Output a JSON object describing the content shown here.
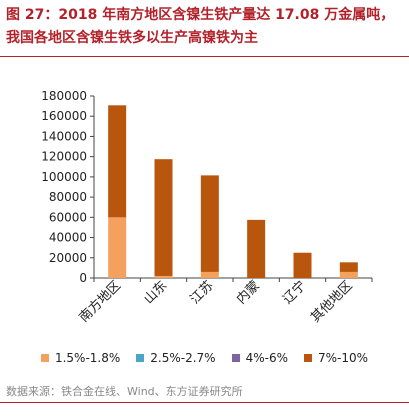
{
  "header": {
    "title_line1": "图 27：2018 年南方地区含镍生铁产量达 17.08 万金属吨，",
    "title_line2": "我国各地区含镍生铁多以生产高镍铁为主"
  },
  "chart_data": {
    "type": "bar",
    "stacked": true,
    "categories": [
      "南方地区",
      "山东",
      "江苏",
      "内蒙",
      "辽宁",
      "其他地区"
    ],
    "series": [
      {
        "name": "1.5%-1.8%",
        "color": "#f4a15d",
        "values": [
          60000,
          2000,
          6000,
          0,
          0,
          6000
        ]
      },
      {
        "name": "2.5%-2.7%",
        "color": "#4aa5c9",
        "values": [
          0,
          0,
          0,
          0,
          0,
          0
        ]
      },
      {
        "name": "4%-6%",
        "color": "#8064a2",
        "values": [
          0,
          0,
          0,
          0,
          0,
          0
        ]
      },
      {
        "name": "7%-10%",
        "color": "#b9560d",
        "values": [
          110800,
          115500,
          95500,
          57500,
          25000,
          9500
        ]
      }
    ],
    "ylim": [
      0,
      180000
    ],
    "yticks": [
      0,
      20000,
      40000,
      60000,
      80000,
      100000,
      120000,
      140000,
      160000,
      180000
    ],
    "grid": false,
    "legend_position": "bottom"
  },
  "footer": {
    "source": "数据来源：铁合金在线、Wind、东方证券研究所"
  }
}
